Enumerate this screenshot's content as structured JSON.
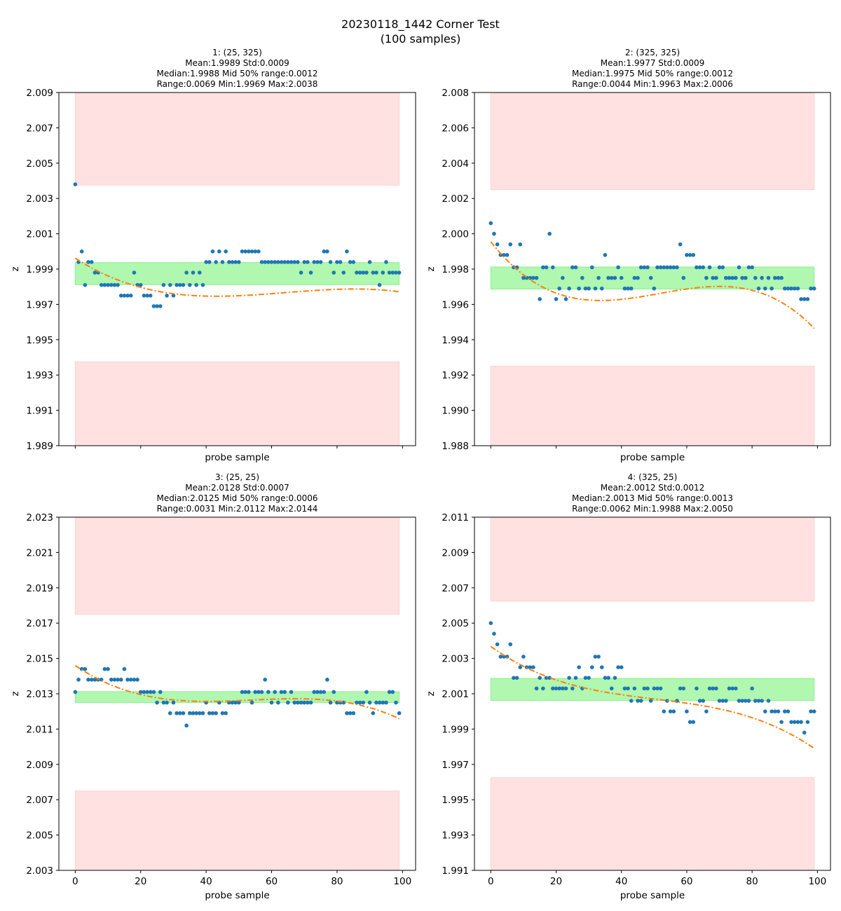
{
  "figure": {
    "title_lines": [
      "20230118_1442 Corner Test",
      "(100 samples)"
    ]
  },
  "chart_data": [
    {
      "type": "scatter",
      "title_lines": [
        "1: (25, 325)",
        "Mean:1.9989  Std:0.0009",
        "Median:1.9988  Mid 50% range:0.0012",
        "Range:0.0069  Min:1.9969  Max:2.0038"
      ],
      "xlabel": "probe sample",
      "ylabel": "z",
      "xlim": [
        -5,
        104
      ],
      "ylim": [
        1.989,
        2.009
      ],
      "xticks": [
        0,
        20,
        40,
        60,
        80,
        100
      ],
      "xtick_labels_visible": false,
      "yticks": [
        1.989,
        1.991,
        1.993,
        1.995,
        1.997,
        1.999,
        2.001,
        2.003,
        2.005,
        2.007,
        2.009
      ],
      "ytick_labels": [
        "1.989",
        "1.991",
        "1.993",
        "1.995",
        "1.997",
        "1.999",
        "2.001",
        "2.003",
        "2.005",
        "2.007",
        "2.009"
      ],
      "bands": {
        "upper_red": [
          2.00375,
          2.009
        ],
        "lower_red": [
          1.989,
          1.99375
        ],
        "mid50_green": [
          1.99812,
          1.99937
        ],
        "x_range": [
          0,
          99
        ]
      },
      "fit_poly_coeffs": [
        1.99962,
        -0.0001203,
        2.1e-06,
        -1.09e-08
      ],
      "y": [
        2.0038,
        1.9994,
        2.0,
        1.9981,
        1.9994,
        1.9994,
        1.9988,
        1.9988,
        1.9981,
        1.9981,
        1.9981,
        1.9981,
        1.9981,
        1.9981,
        1.9975,
        1.9975,
        1.9975,
        1.9975,
        1.9988,
        1.9981,
        1.9981,
        1.9975,
        1.9975,
        1.9975,
        1.9969,
        1.9969,
        1.9969,
        1.9981,
        1.9975,
        1.9981,
        1.9975,
        1.9981,
        1.9981,
        1.9981,
        1.9988,
        1.9981,
        1.9988,
        1.9981,
        1.9988,
        1.9981,
        1.9994,
        1.9994,
        2.0,
        1.9994,
        2.0,
        1.9994,
        2.0,
        1.9994,
        1.9994,
        1.9994,
        1.9994,
        2.0,
        2.0,
        2.0,
        2.0,
        2.0,
        2.0,
        1.9994,
        1.9994,
        1.9994,
        1.9994,
        1.9994,
        1.9994,
        1.9994,
        1.9994,
        1.9994,
        1.9994,
        1.9994,
        1.9994,
        1.9988,
        1.9994,
        1.9994,
        1.9988,
        1.9994,
        1.9994,
        1.9994,
        2.0,
        2.0,
        1.9994,
        1.9988,
        1.9994,
        1.9994,
        1.9988,
        2.0,
        1.9994,
        1.9994,
        1.9988,
        1.9988,
        1.9988,
        1.9988,
        1.9994,
        1.9988,
        1.9988,
        1.9981,
        1.9988,
        1.9994,
        1.9988,
        1.9988,
        1.9988,
        1.9988
      ]
    },
    {
      "type": "scatter",
      "title_lines": [
        "2: (325, 325)",
        "Mean:1.9977  Std:0.0009",
        "Median:1.9975  Mid 50% range:0.0012",
        "Range:0.0044  Min:1.9963  Max:2.0006"
      ],
      "xlabel": "probe sample",
      "ylabel": "z",
      "xlim": [
        -5,
        104
      ],
      "ylim": [
        1.988,
        2.008
      ],
      "xticks": [
        0,
        20,
        40,
        60,
        80,
        100
      ],
      "xtick_labels_visible": false,
      "yticks": [
        1.988,
        1.99,
        1.992,
        1.994,
        1.996,
        1.998,
        2.0,
        2.002,
        2.004,
        2.006,
        2.008
      ],
      "ytick_labels": [
        "1.988",
        "1.990",
        "1.992",
        "1.994",
        "1.996",
        "1.998",
        "2.000",
        "2.002",
        "2.004",
        "2.006",
        "2.008"
      ],
      "bands": {
        "upper_red": [
          2.0025,
          2.008
        ],
        "lower_red": [
          1.988,
          1.9925
        ],
        "mid50_green": [
          1.99687,
          1.99812
        ],
        "x_range": [
          0,
          99
        ]
      },
      "fit_poly_coeffs": [
        1.99955,
        -0.000236,
        5.2e-06,
        -3.35e-08
      ],
      "y": [
        2.0006,
        2.0,
        1.9994,
        1.9988,
        1.9988,
        1.9988,
        1.9994,
        1.9981,
        1.9981,
        1.9994,
        1.9975,
        1.9975,
        1.9975,
        1.9975,
        1.9975,
        1.9963,
        1.9981,
        1.9981,
        2.0,
        1.9981,
        1.9963,
        1.9969,
        1.9975,
        1.9963,
        1.9969,
        1.9981,
        1.9981,
        1.9969,
        1.9975,
        1.9969,
        1.9969,
        1.9981,
        1.9969,
        1.9975,
        1.9969,
        1.9988,
        1.9975,
        1.9975,
        1.9975,
        1.9981,
        1.9975,
        1.9969,
        1.9969,
        1.9969,
        1.9975,
        1.9975,
        1.9981,
        1.9981,
        1.9981,
        1.9975,
        1.9969,
        1.9981,
        1.9981,
        1.9981,
        1.9981,
        1.9981,
        1.9981,
        1.9981,
        1.9994,
        1.9975,
        1.9988,
        1.9988,
        1.9988,
        1.9981,
        1.9981,
        1.9981,
        1.9975,
        1.9981,
        1.9975,
        1.9975,
        1.9981,
        1.9981,
        1.9975,
        1.9975,
        1.9975,
        1.9975,
        1.9981,
        1.9975,
        1.9975,
        1.9981,
        1.9981,
        1.9975,
        1.9969,
        1.9975,
        1.9969,
        1.9975,
        1.9969,
        1.9975,
        1.9975,
        1.9975,
        1.9969,
        1.9969,
        1.9969,
        1.9969,
        1.9969,
        1.9963,
        1.9963,
        1.9963,
        1.9969,
        1.9969
      ]
    },
    {
      "type": "scatter",
      "title_lines": [
        "3: (25, 25)",
        "Mean:2.0128  Std:0.0007",
        "Median:2.0125  Mid 50% range:0.0006",
        "Range:0.0031  Min:2.0112  Max:2.0144"
      ],
      "xlabel": "probe sample",
      "ylabel": "z",
      "xlim": [
        -5,
        104
      ],
      "ylim": [
        2.003,
        2.023
      ],
      "xticks": [
        0,
        20,
        40,
        60,
        80,
        100
      ],
      "xtick_labels": [
        "0",
        "20",
        "40",
        "60",
        "80",
        "100"
      ],
      "xtick_labels_visible": true,
      "yticks": [
        2.003,
        2.005,
        2.007,
        2.009,
        2.011,
        2.013,
        2.015,
        2.017,
        2.019,
        2.021,
        2.023
      ],
      "ytick_labels": [
        "2.003",
        "2.005",
        "2.007",
        "2.009",
        "2.011",
        "2.013",
        "2.015",
        "2.017",
        "2.019",
        "2.021",
        "2.023"
      ],
      "bands": {
        "upper_red": [
          2.0175,
          2.023
        ],
        "lower_red": [
          2.003,
          2.0075
        ],
        "mid50_green": [
          2.0125,
          2.01312
        ],
        "x_range": [
          0,
          99
        ]
      },
      "fit_poly_coeffs": [
        2.0146,
        -0.000126,
        2.5e-06,
        -1.55e-08
      ],
      "y": [
        2.0131,
        2.0138,
        2.0144,
        2.0144,
        2.0138,
        2.0138,
        2.0138,
        2.0138,
        2.0138,
        2.0144,
        2.0144,
        2.0138,
        2.0138,
        2.0138,
        2.0138,
        2.0144,
        2.0138,
        2.0138,
        2.0138,
        2.0138,
        2.0131,
        2.0131,
        2.0131,
        2.0131,
        2.0131,
        2.0125,
        2.0131,
        2.0125,
        2.0125,
        2.0119,
        2.0125,
        2.0119,
        2.0119,
        2.0119,
        2.0112,
        2.0119,
        2.0119,
        2.0119,
        2.0119,
        2.0119,
        2.0125,
        2.0119,
        2.0119,
        2.0119,
        2.0125,
        2.0119,
        2.0119,
        2.0125,
        2.0125,
        2.0125,
        2.0125,
        2.0131,
        2.0131,
        2.0131,
        2.0125,
        2.0131,
        2.0131,
        2.0131,
        2.0138,
        2.0131,
        2.0125,
        2.0131,
        2.0125,
        2.0131,
        2.0131,
        2.0125,
        2.0131,
        2.0125,
        2.0125,
        2.0125,
        2.0125,
        2.0125,
        2.0125,
        2.0131,
        2.0131,
        2.0131,
        2.0131,
        2.0138,
        2.0125,
        2.0131,
        2.0125,
        2.0125,
        2.0125,
        2.0119,
        2.0119,
        2.0119,
        2.0125,
        2.0125,
        2.0125,
        2.0131,
        2.0125,
        2.0119,
        2.0125,
        2.0125,
        2.0125,
        2.0125,
        2.0131,
        2.0131,
        2.0125,
        2.0119
      ]
    },
    {
      "type": "scatter",
      "title_lines": [
        "4: (325, 25)",
        "Mean:2.0012  Std:0.0012",
        "Median:2.0013  Mid 50% range:0.0013",
        "Range:0.0062  Min:1.9988  Max:2.0050"
      ],
      "xlabel": "probe sample",
      "ylabel": "z",
      "xlim": [
        -5,
        104
      ],
      "ylim": [
        1.991,
        2.011
      ],
      "xticks": [
        0,
        20,
        40,
        60,
        80,
        100
      ],
      "xtick_labels": [
        "0",
        "20",
        "40",
        "60",
        "80",
        "100"
      ],
      "xtick_labels_visible": true,
      "yticks": [
        1.991,
        1.993,
        1.995,
        1.997,
        1.999,
        2.001,
        2.003,
        2.005,
        2.007,
        2.009,
        2.011
      ],
      "ytick_labels": [
        "1.991",
        "1.993",
        "1.995",
        "1.997",
        "1.999",
        "2.001",
        "2.003",
        "2.005",
        "2.007",
        "2.009",
        "2.011"
      ],
      "bands": {
        "upper_red": [
          2.00625,
          2.011
        ],
        "lower_red": [
          1.991,
          1.99625
        ],
        "mid50_green": [
          2.00062,
          2.00187
        ],
        "x_range": [
          0,
          99
        ]
      },
      "fit_poly_coeffs": [
        2.00368,
        -0.000133,
        2.2e-06,
        -1.46e-08
      ],
      "y": [
        2.005,
        2.0044,
        2.0038,
        2.0031,
        2.0031,
        2.0031,
        2.0038,
        2.0019,
        2.0019,
        2.0025,
        2.0031,
        2.0025,
        2.0025,
        2.0025,
        2.0013,
        2.0019,
        2.0013,
        2.0019,
        2.0019,
        2.0013,
        2.0013,
        2.0013,
        2.0013,
        2.0013,
        2.0019,
        2.0013,
        2.0019,
        2.0025,
        2.0013,
        2.0019,
        2.0019,
        2.0025,
        2.0031,
        2.0031,
        2.0025,
        2.0019,
        2.0019,
        2.0013,
        2.0019,
        2.0025,
        2.0025,
        2.0013,
        2.0013,
        2.0006,
        2.0013,
        2.0006,
        2.0006,
        2.0013,
        2.0013,
        2.0006,
        2.0013,
        2.0013,
        2.0013,
        2.0,
        2.0006,
        2.0,
        2.0,
        2.0006,
        2.0013,
        2.0013,
        2.0,
        1.9994,
        1.9994,
        2.0013,
        2.0006,
        2.0006,
        2.0,
        2.0013,
        2.0013,
        2.0013,
        2.0006,
        2.0006,
        2.0006,
        2.0013,
        2.0013,
        2.0013,
        2.0006,
        2.0006,
        2.0006,
        2.0006,
        2.0013,
        2.0006,
        2.0006,
        2.0006,
        2.0,
        2.0006,
        2.0,
        2.0,
        2.0,
        1.9994,
        2.0,
        2.0,
        1.9994,
        1.9994,
        1.9994,
        1.9994,
        1.9988,
        1.9994,
        2.0,
        2.0
      ]
    }
  ],
  "colors": {
    "points": "#1f77b4",
    "fit_line": "#ff7f0e",
    "red_band": "#ffe1e1",
    "red_band_edge": "#ffd0d0",
    "green_band": "#b0f7b0",
    "green_band_edge": "#90ee90"
  }
}
